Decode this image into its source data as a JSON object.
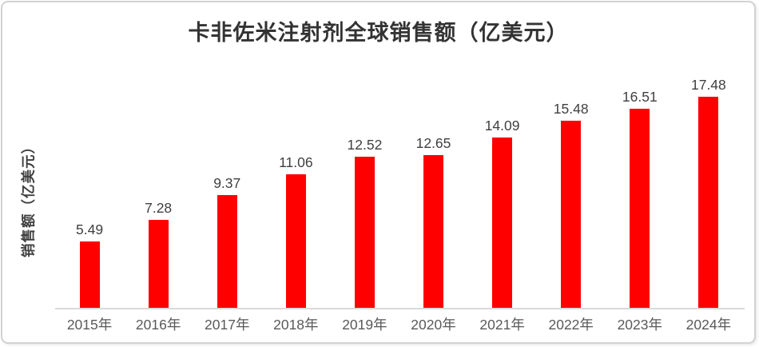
{
  "chart_data": {
    "type": "bar",
    "title": "卡非佐米注射剂全球销售额（亿美元）",
    "ylabel": "销售额（亿美元）",
    "xlabel": "",
    "categories": [
      "2015年",
      "2016年",
      "2017年",
      "2018年",
      "2019年",
      "2020年",
      "2021年",
      "2022年",
      "2023年",
      "2024年"
    ],
    "values": [
      5.49,
      7.28,
      9.37,
      11.06,
      12.52,
      12.65,
      14.09,
      15.48,
      16.51,
      17.48
    ],
    "series_name": "销售额",
    "ylim": [
      0,
      20
    ],
    "grid": false,
    "legend_position": "none",
    "data_labels_shown": true,
    "colors": {
      "bar": "#FF0000",
      "title": "#333333",
      "value_label": "#404040",
      "tick_label": "#595959",
      "axis_line": "#D9D9D9",
      "border": "#D2D2D2",
      "background": "#FFFFFF"
    }
  }
}
